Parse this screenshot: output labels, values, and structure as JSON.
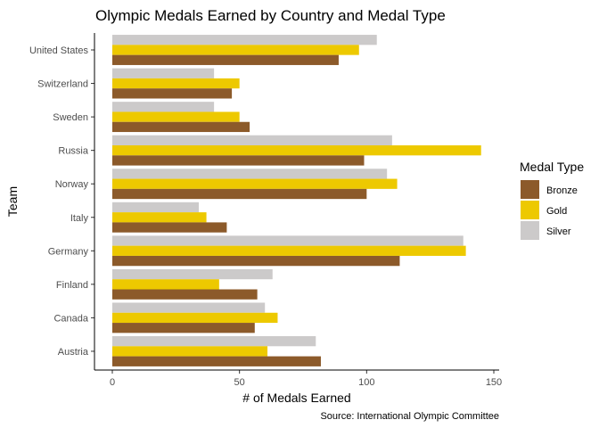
{
  "chart_data": {
    "type": "bar",
    "orientation": "horizontal",
    "title": "Olympic Medals Earned by Country and Medal Type",
    "xlabel": "# of Medals Earned",
    "ylabel": "Team",
    "caption": "Source: International Olympic Committee",
    "categories": [
      "United States",
      "Switzerland",
      "Sweden",
      "Russia",
      "Norway",
      "Italy",
      "Germany",
      "Finland",
      "Canada",
      "Austria"
    ],
    "xlim": [
      0,
      150
    ],
    "xticks": [
      0,
      50,
      100,
      150
    ],
    "grid": false,
    "legend": {
      "title": "Medal Type",
      "position": "right"
    },
    "series": [
      {
        "name": "Silver",
        "color": "#cccaca",
        "values": [
          104,
          40,
          40,
          110,
          108,
          34,
          138,
          63,
          60,
          80
        ]
      },
      {
        "name": "Gold",
        "color": "#edc900",
        "values": [
          97,
          50,
          50,
          145,
          112,
          37,
          139,
          42,
          65,
          61
        ]
      },
      {
        "name": "Bronze",
        "color": "#8c5a2a",
        "values": [
          89,
          47,
          54,
          99,
          100,
          45,
          113,
          57,
          56,
          82
        ]
      }
    ],
    "legend_order": [
      "Bronze",
      "Gold",
      "Silver"
    ]
  }
}
